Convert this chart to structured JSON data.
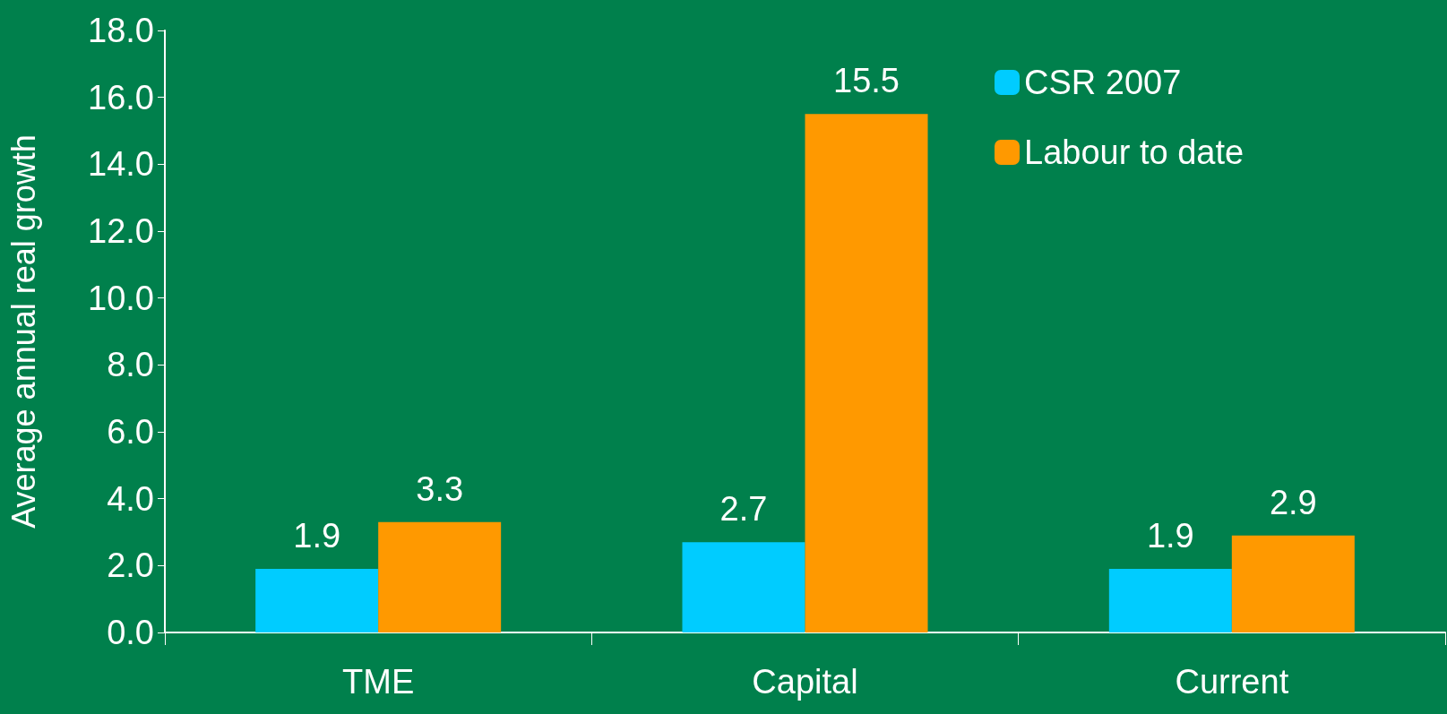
{
  "chart_data": {
    "type": "bar",
    "ylabel": "Average annual real growth",
    "categories": [
      "TME",
      "Capital",
      "Current"
    ],
    "series": [
      {
        "name": "CSR 2007",
        "color": "#00ccff",
        "values": [
          1.9,
          2.7,
          1.9
        ]
      },
      {
        "name": "Labour to date",
        "color": "#ff9900",
        "values": [
          3.3,
          15.5,
          2.9
        ]
      }
    ],
    "ylim": [
      0,
      18
    ],
    "yticks": [
      {
        "value": 0,
        "label": "0.0"
      },
      {
        "value": 2,
        "label": "2.0"
      },
      {
        "value": 4,
        "label": "4.0"
      },
      {
        "value": 6,
        "label": "6.0"
      },
      {
        "value": 8,
        "label": "8.0"
      },
      {
        "value": 10,
        "label": "10.0"
      },
      {
        "value": 12,
        "label": "12.0"
      },
      {
        "value": 14,
        "label": "14.0"
      },
      {
        "value": 16,
        "label": "16.0"
      },
      {
        "value": 18,
        "label": "18.0"
      }
    ],
    "data_labels": true,
    "grid": false,
    "legend": "top right"
  }
}
